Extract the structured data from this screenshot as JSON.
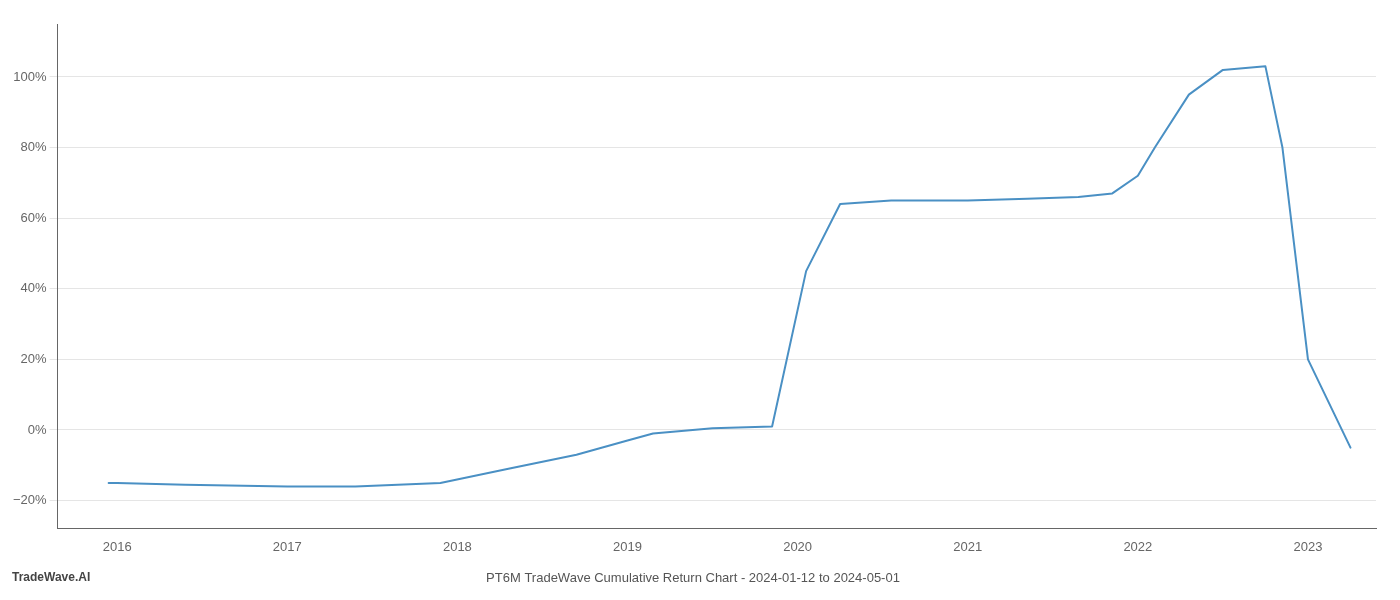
{
  "chart_data": {
    "type": "line",
    "title": "PT6M TradeWave Cumulative Return Chart - 2024-01-12 to 2024-05-01",
    "annotations": [
      "TradeWave.AI"
    ],
    "x": [
      2015.95,
      2016.0,
      2016.4,
      2017.0,
      2017.4,
      2017.9,
      2018.3,
      2018.7,
      2019.0,
      2019.15,
      2019.5,
      2019.85,
      2020.05,
      2020.25,
      2020.55,
      2020.85,
      2021.0,
      2021.35,
      2021.65,
      2021.85,
      2022.0,
      2022.1,
      2022.3,
      2022.5,
      2022.75,
      2022.85,
      2023.0,
      2023.25
    ],
    "values": [
      -15,
      -15,
      -15.5,
      -16,
      -16,
      -15,
      -11,
      -7,
      -3,
      -1,
      0.5,
      1,
      45,
      64,
      65,
      65,
      65,
      65.5,
      66,
      67,
      72,
      80,
      95,
      102,
      103,
      80,
      20,
      -5
    ],
    "color": "#4a90c4",
    "xlim": [
      2015.65,
      2023.4
    ],
    "ylim": [
      -28,
      115
    ],
    "xticks": [
      2016,
      2017,
      2018,
      2019,
      2020,
      2021,
      2022,
      2023
    ],
    "yticks": [
      {
        "value": -20,
        "label": "−20%"
      },
      {
        "value": 0,
        "label": "0%"
      },
      {
        "value": 20,
        "label": "20%"
      },
      {
        "value": 40,
        "label": "40%"
      },
      {
        "value": 60,
        "label": "60%"
      },
      {
        "value": 80,
        "label": "80%"
      },
      {
        "value": 100,
        "label": "100%"
      }
    ],
    "grid": "y"
  }
}
